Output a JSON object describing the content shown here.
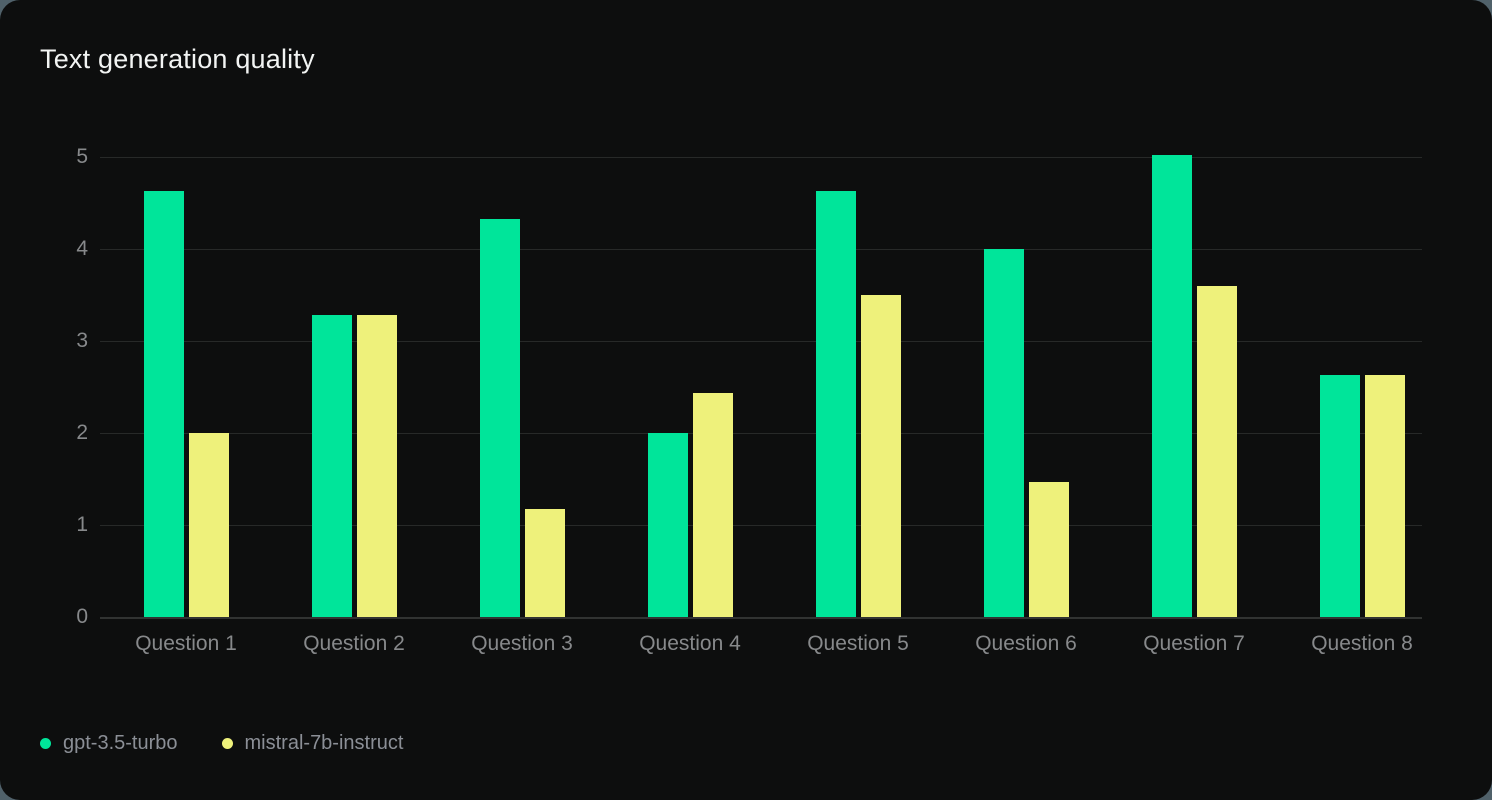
{
  "title": "Text generation quality",
  "colors": {
    "card_background": "#0d0e0e",
    "page_backdrop": "#50616a",
    "grid_line": "#272928",
    "axis_text": "#87898b",
    "title_text": "#f2f4f3",
    "legend_text": "#8b8f96",
    "series_green": "#00e59a",
    "series_yellow": "#eef17b"
  },
  "chart_data": {
    "type": "bar",
    "title": "Text generation quality",
    "categories": [
      "Question 1",
      "Question 2",
      "Question 3",
      "Question 4",
      "Question 5",
      "Question 6",
      "Question 7",
      "Question 8"
    ],
    "series": [
      {
        "name": "gpt-3.5-turbo",
        "color": "#00e59a",
        "values": [
          4.63,
          3.28,
          4.33,
          2.0,
          4.63,
          4.0,
          5.02,
          2.63
        ]
      },
      {
        "name": "mistral-7b-instruct",
        "color": "#eef17b",
        "values": [
          2.0,
          3.28,
          1.17,
          2.43,
          3.5,
          1.47,
          3.6,
          2.63
        ]
      }
    ],
    "xlabel": "",
    "ylabel": "",
    "ylim": [
      0,
      5
    ],
    "yticks": [
      0,
      1,
      2,
      3,
      4,
      5
    ],
    "grid": "horizontal",
    "legend_position": "bottom-left"
  }
}
